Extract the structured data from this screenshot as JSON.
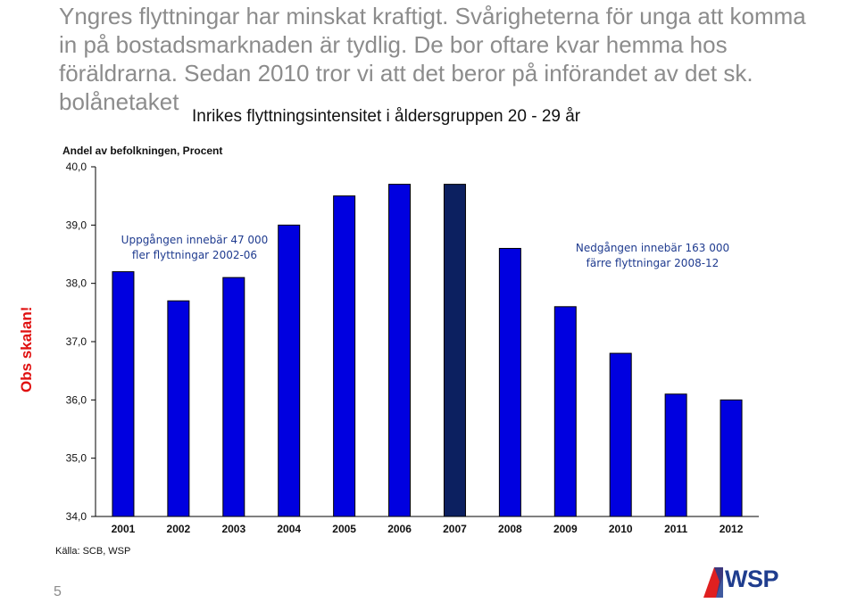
{
  "slide": {
    "headline": "Yngres flyttningar har minskat kraftigt. Svårigheterna för unga att komma in på bostadsmarknaden är tydlig. De bor oftare kvar hemma hos föräldrarna. Sedan 2010 tror vi att det beror på införandet av det sk. bolånetaket",
    "obs_note": "Obs skalan!",
    "source": "Källa: SCB, WSP",
    "page_number": "5",
    "logo_text": "WSP",
    "logo_colors": {
      "blue": "#1f3d8e",
      "red": "#e02020"
    }
  },
  "chart_data": {
    "type": "bar",
    "title": "Inrikes flyttningsintensitet i åldersgruppen 20 - 29 år",
    "ylabel": "Andel av befolkningen, Procent",
    "xlabel": "",
    "categories": [
      "2001",
      "2002",
      "2003",
      "2004",
      "2005",
      "2006",
      "2007",
      "2008",
      "2009",
      "2010",
      "2011",
      "2012"
    ],
    "values": [
      38.2,
      37.7,
      38.1,
      39.0,
      39.5,
      39.7,
      39.7,
      38.6,
      37.6,
      36.8,
      36.1,
      36.0
    ],
    "highlight_index": 6,
    "ylim": [
      34.0,
      40.0
    ],
    "yticks": [
      "34,0",
      "35,0",
      "36,0",
      "37,0",
      "38,0",
      "39,0",
      "40,0"
    ],
    "grid": false,
    "colors": {
      "bar": "#0000e0",
      "highlight": "#0c2060",
      "bar_edge": "#000000"
    },
    "annotations": [
      {
        "text": [
          "Uppgången innebär 47 000",
          "fler flyttningar 2002-06"
        ]
      },
      {
        "text": [
          "Nedgången innebär 163 000",
          "färre flyttningar 2008-12"
        ]
      }
    ]
  }
}
